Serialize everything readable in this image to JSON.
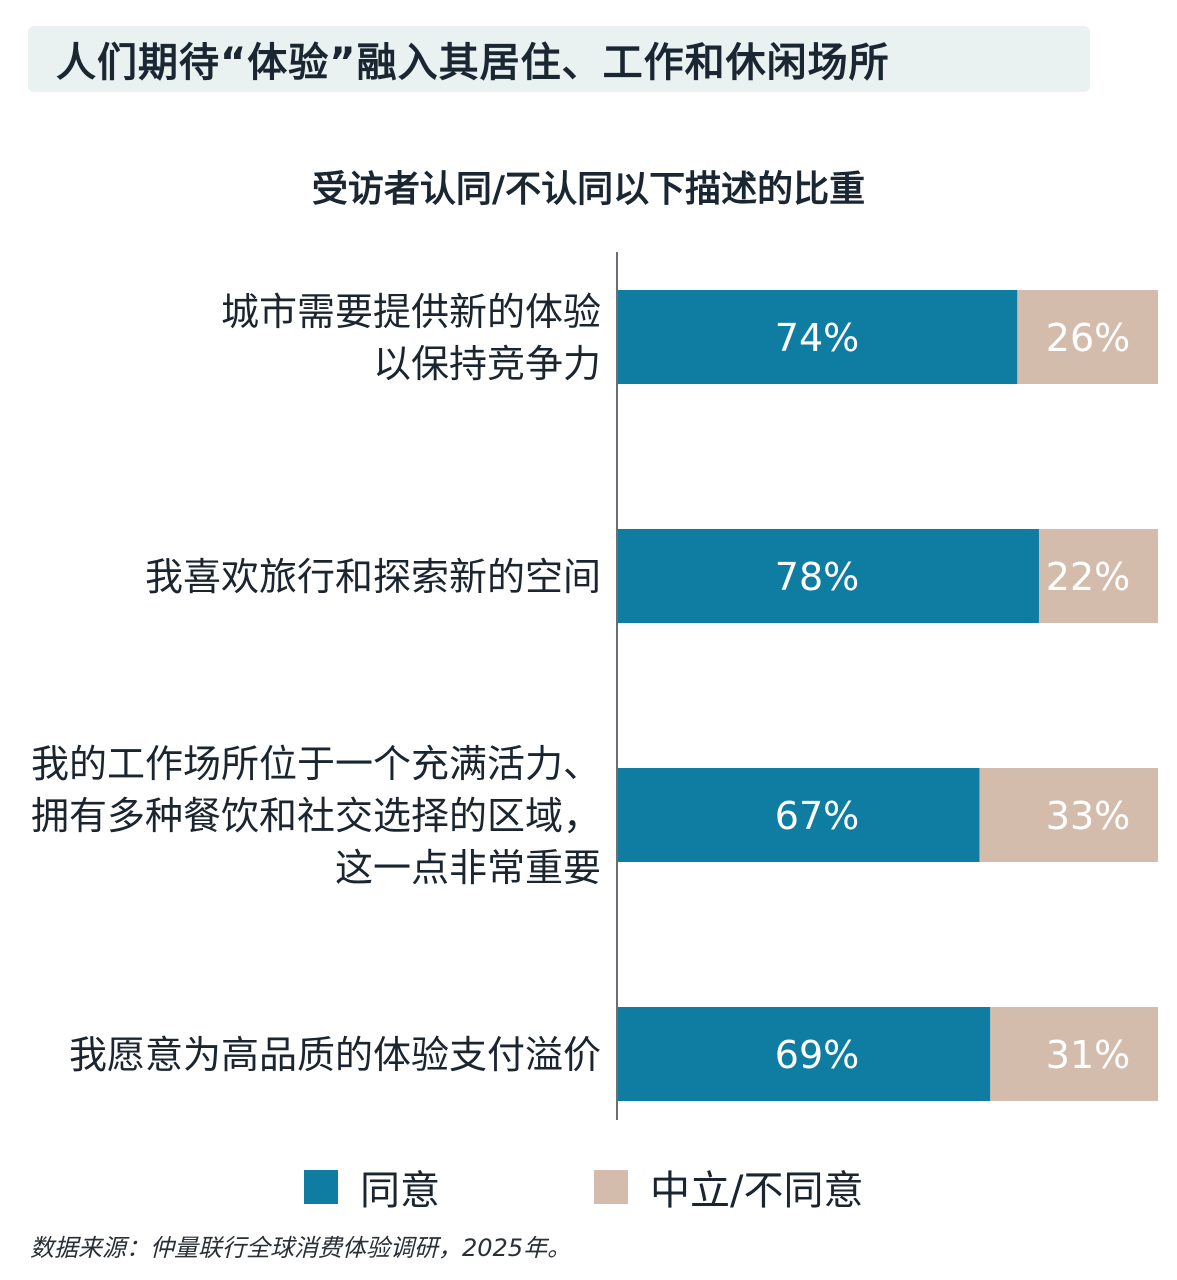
{
  "header": {
    "title": "人们期待“体验”融入其居住、工作和休闲场所"
  },
  "colors": {
    "agree": "#0f7ca2",
    "neutral_disagree": "#d4bcac",
    "banner_bg": "#e9f1f1"
  },
  "chart_data": {
    "type": "bar",
    "orientation": "horizontal",
    "stacked": true,
    "title": "受访者认同/不认同以下描述的比重",
    "categories": [
      [
        "城市需要提供新的体验",
        "以保持竞争力"
      ],
      [
        "我喜欢旅行和探索新的空间"
      ],
      [
        "我的工作场所位于一个充满活力、",
        "拥有多种餐饮和社交选择的区域，",
        "这一点非常重要"
      ],
      [
        "我愿意为高品质的体验支付溢价"
      ]
    ],
    "series": [
      {
        "name": "同意",
        "values": [
          74,
          78,
          67,
          69
        ],
        "labels": [
          "74%",
          "78%",
          "67%",
          "69%"
        ]
      },
      {
        "name": "中立/不同意",
        "values": [
          26,
          22,
          33,
          31
        ],
        "labels": [
          "26%",
          "22%",
          "33%",
          "31%"
        ]
      }
    ],
    "xlim": [
      0,
      100
    ],
    "legend_position": "bottom",
    "grid": false
  },
  "legend": {
    "agree_label": "同意",
    "neutral_label": "中立/不同意"
  },
  "source": "数据来源：仲量联行全球消费体验调研，2025年。"
}
